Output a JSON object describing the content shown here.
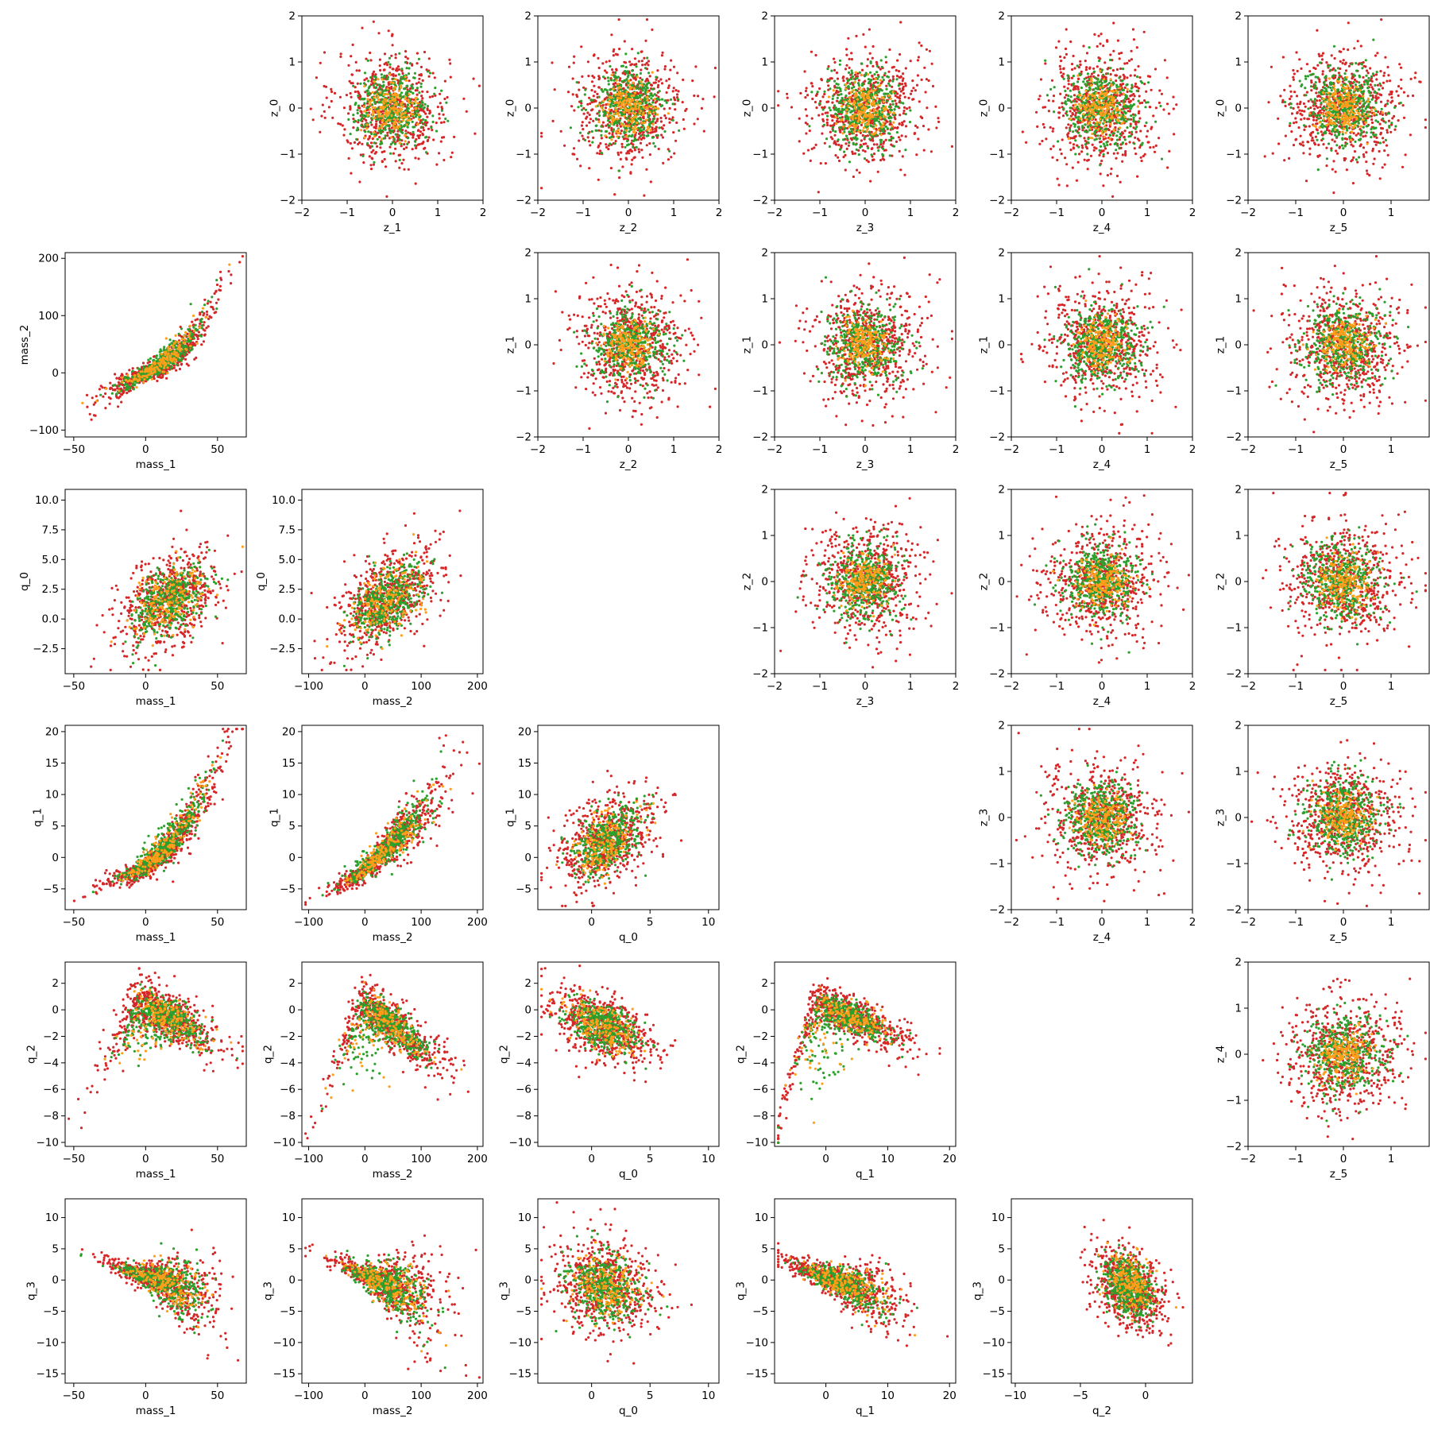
{
  "chart_data": {
    "type": "scatter",
    "grid": false,
    "legend": "none",
    "marker_size": 1.6,
    "colors": {
      "red": "#d62728",
      "green": "#2ca02c",
      "orange": "#ff9e1a"
    },
    "axis_order": [
      "mass_1",
      "mass_2",
      "q_0",
      "q_1",
      "q_2",
      "q_3",
      "z_0",
      "z_1",
      "z_2",
      "z_3",
      "z_4",
      "z_5"
    ],
    "axes": {
      "mass_1": {
        "label": "mass_1",
        "range": [
          -56,
          70
        ],
        "ticks": [
          -50,
          0,
          50
        ]
      },
      "mass_2": {
        "label": "mass_2",
        "range": [
          -112,
          210
        ],
        "ticks": [
          -100,
          0,
          100,
          200
        ]
      },
      "q_0": {
        "label": "q_0",
        "range": [
          -4.6,
          10.9
        ],
        "ticks": [
          -2.5,
          0.0,
          2.5,
          5.0,
          7.5,
          10.0
        ]
      },
      "q_0_x": {
        "label": "q_0",
        "range": [
          -4.6,
          10.9
        ],
        "ticks": [
          0,
          5,
          10
        ]
      },
      "q_1": {
        "label": "q_1",
        "range": [
          -8.3,
          21.0
        ],
        "ticks": [
          -5,
          0,
          5,
          10,
          15,
          20
        ]
      },
      "q_1_x": {
        "label": "q_1",
        "range": [
          -8.3,
          21.0
        ],
        "ticks": [
          0,
          10,
          20
        ]
      },
      "q_2": {
        "label": "q_2",
        "range": [
          -10.3,
          3.6
        ],
        "ticks": [
          -10,
          -8,
          -6,
          -4,
          -2,
          0,
          2
        ]
      },
      "q_2_x": {
        "label": "q_2",
        "range": [
          -10.3,
          3.6
        ],
        "ticks": [
          -10,
          -5,
          0
        ]
      },
      "q_3": {
        "label": "q_3",
        "range": [
          -16.5,
          13.0
        ],
        "ticks": [
          -15,
          -10,
          -5,
          0,
          5,
          10
        ]
      },
      "z_0": {
        "label": "z_0",
        "range": [
          -2.0,
          2.0
        ],
        "ticks": [
          -2,
          -1,
          0,
          1,
          2
        ]
      },
      "z_1": {
        "label": "z_1",
        "range": [
          -2.0,
          2.0
        ],
        "ticks": [
          -2,
          -1,
          0,
          1,
          2
        ]
      },
      "z_2": {
        "label": "z_2",
        "range": [
          -2.0,
          2.0
        ],
        "ticks": [
          -2,
          -1,
          0,
          1,
          2
        ]
      },
      "z_3": {
        "label": "z_3",
        "range": [
          -2.0,
          2.0
        ],
        "ticks": [
          -2,
          -1,
          0,
          1,
          2
        ]
      },
      "z_4": {
        "label": "z_4",
        "range": [
          -2.0,
          2.0
        ],
        "ticks": [
          -2,
          -1,
          0,
          1,
          2
        ]
      },
      "z_5": {
        "label": "z_5",
        "range": [
          -2.0,
          1.8
        ],
        "ticks": [
          -2,
          -1,
          0,
          1
        ]
      }
    },
    "panels": [
      {
        "row": 0,
        "col": 1,
        "x": "z_1",
        "y": "z_0",
        "dist": "iso"
      },
      {
        "row": 0,
        "col": 2,
        "x": "z_2",
        "y": "z_0",
        "dist": "iso"
      },
      {
        "row": 0,
        "col": 3,
        "x": "z_3",
        "y": "z_0",
        "dist": "iso"
      },
      {
        "row": 0,
        "col": 4,
        "x": "z_4",
        "y": "z_0",
        "dist": "iso"
      },
      {
        "row": 0,
        "col": 5,
        "x": "z_5",
        "y": "z_0",
        "dist": "iso"
      },
      {
        "row": 1,
        "col": 0,
        "x": "mass_1",
        "y": "mass_2",
        "dist": "m1m2"
      },
      {
        "row": 1,
        "col": 2,
        "x": "z_2",
        "y": "z_1",
        "dist": "iso"
      },
      {
        "row": 1,
        "col": 3,
        "x": "z_3",
        "y": "z_1",
        "dist": "iso"
      },
      {
        "row": 1,
        "col": 4,
        "x": "z_4",
        "y": "z_1",
        "dist": "iso"
      },
      {
        "row": 1,
        "col": 5,
        "x": "z_5",
        "y": "z_1",
        "dist": "iso"
      },
      {
        "row": 2,
        "col": 0,
        "x": "mass_1",
        "y": "q_0",
        "dist": "m1q0"
      },
      {
        "row": 2,
        "col": 1,
        "x": "mass_2",
        "y": "q_0",
        "dist": "m2q0"
      },
      {
        "row": 2,
        "col": 3,
        "x": "z_3",
        "y": "z_2",
        "dist": "iso"
      },
      {
        "row": 2,
        "col": 4,
        "x": "z_4",
        "y": "z_2",
        "dist": "iso"
      },
      {
        "row": 2,
        "col": 5,
        "x": "z_5",
        "y": "z_2",
        "dist": "iso"
      },
      {
        "row": 3,
        "col": 0,
        "x": "mass_1",
        "y": "q_1",
        "dist": "m1q1"
      },
      {
        "row": 3,
        "col": 1,
        "x": "mass_2",
        "y": "q_1",
        "dist": "m2q1"
      },
      {
        "row": 3,
        "col": 2,
        "x": "q_0_x",
        "y": "q_1",
        "dist": "q0q1"
      },
      {
        "row": 3,
        "col": 4,
        "x": "z_4",
        "y": "z_3",
        "dist": "iso"
      },
      {
        "row": 3,
        "col": 5,
        "x": "z_5",
        "y": "z_3",
        "dist": "iso"
      },
      {
        "row": 4,
        "col": 0,
        "x": "mass_1",
        "y": "q_2",
        "dist": "m1q2"
      },
      {
        "row": 4,
        "col": 1,
        "x": "mass_2",
        "y": "q_2",
        "dist": "m2q2"
      },
      {
        "row": 4,
        "col": 2,
        "x": "q_0_x",
        "y": "q_2",
        "dist": "q0q2"
      },
      {
        "row": 4,
        "col": 3,
        "x": "q_1_x",
        "y": "q_2",
        "dist": "q1q2"
      },
      {
        "row": 4,
        "col": 5,
        "x": "z_5",
        "y": "z_4",
        "dist": "iso"
      },
      {
        "row": 5,
        "col": 0,
        "x": "mass_1",
        "y": "q_3",
        "dist": "m1q3"
      },
      {
        "row": 5,
        "col": 1,
        "x": "mass_2",
        "y": "q_3",
        "dist": "m2q3"
      },
      {
        "row": 5,
        "col": 2,
        "x": "q_0_x",
        "y": "q_3",
        "dist": "q0q3"
      },
      {
        "row": 5,
        "col": 3,
        "x": "q_1_x",
        "y": "q_3",
        "dist": "q1q3"
      },
      {
        "row": 5,
        "col": 4,
        "x": "q_2_x",
        "y": "q_3",
        "dist": "q2q3"
      }
    ]
  }
}
